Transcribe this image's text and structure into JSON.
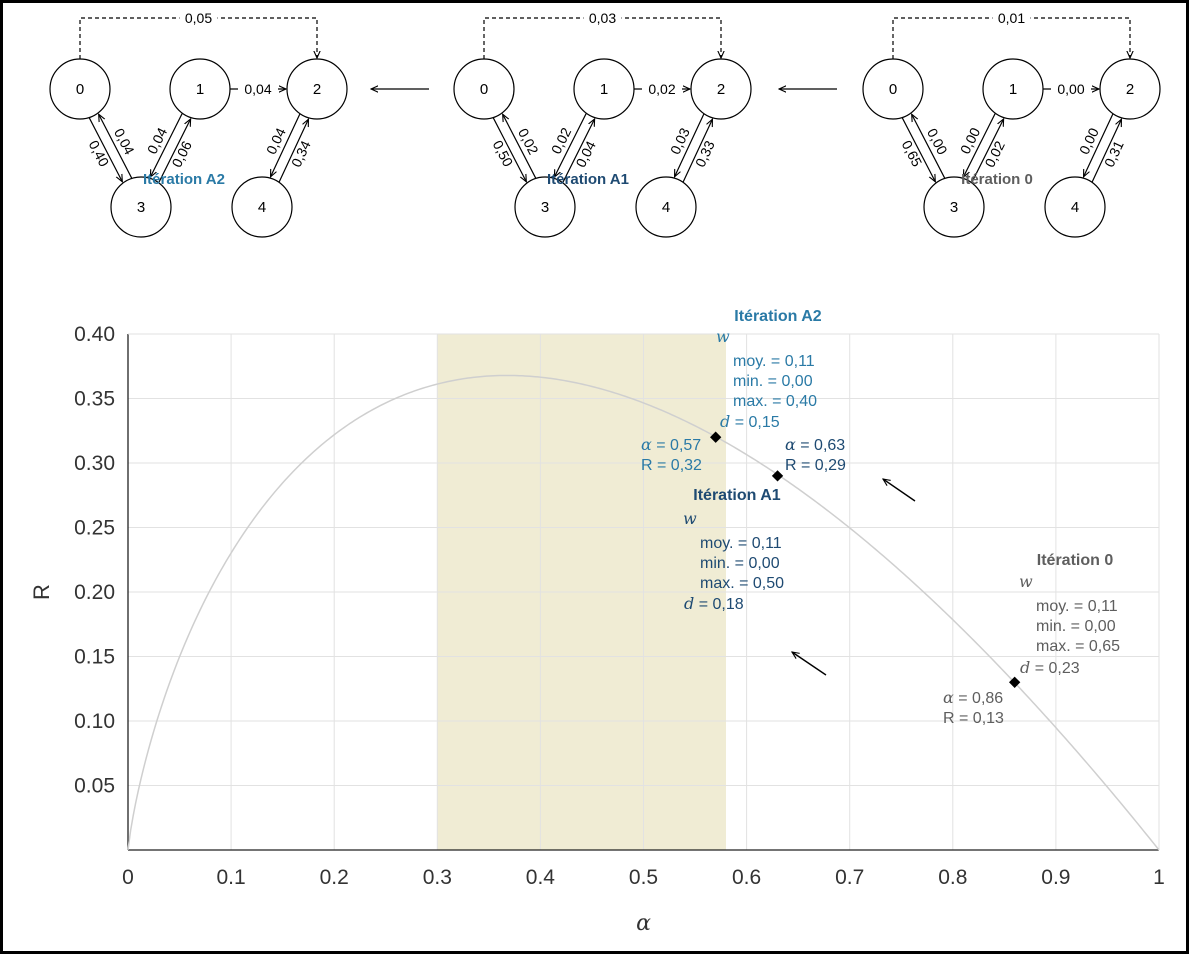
{
  "colors": {
    "iter_A2": "#2a7aa6",
    "iter_A1": "#1e4a72",
    "iter_0": "#5e5e5e",
    "highlight_band": "#f0ecd4",
    "curve": "#cfcfcf",
    "grid": "#e2e2e2"
  },
  "graphs": [
    {
      "title": "Itération A2",
      "color_key": "iter_A2",
      "nodes": [
        "0",
        "1",
        "2",
        "3",
        "4"
      ],
      "edges": [
        {
          "from": "0",
          "to": "2",
          "label": "0,05",
          "dashed": true
        },
        {
          "from": "1",
          "to": "2",
          "label": "0,04"
        },
        {
          "from": "0",
          "to": "3",
          "label": "0,40"
        },
        {
          "from": "3",
          "to": "0",
          "label": "0,04"
        },
        {
          "from": "1",
          "to": "3",
          "label": "0,04"
        },
        {
          "from": "3",
          "to": "1",
          "label": "0,06"
        },
        {
          "from": "2",
          "to": "4",
          "label": "0,04"
        },
        {
          "from": "4",
          "to": "2",
          "label": "0,34"
        }
      ]
    },
    {
      "title": "Itération A1",
      "color_key": "iter_A1",
      "nodes": [
        "0",
        "1",
        "2",
        "3",
        "4"
      ],
      "edges": [
        {
          "from": "0",
          "to": "2",
          "label": "0,03",
          "dashed": true
        },
        {
          "from": "1",
          "to": "2",
          "label": "0,02"
        },
        {
          "from": "0",
          "to": "3",
          "label": "0,50"
        },
        {
          "from": "3",
          "to": "0",
          "label": "0,02"
        },
        {
          "from": "1",
          "to": "3",
          "label": "0,02"
        },
        {
          "from": "3",
          "to": "1",
          "label": "0,04"
        },
        {
          "from": "2",
          "to": "4",
          "label": "0,03"
        },
        {
          "from": "4",
          "to": "2",
          "label": "0,33"
        }
      ]
    },
    {
      "title": "Itération 0",
      "color_key": "iter_0",
      "nodes": [
        "0",
        "1",
        "2",
        "3",
        "4"
      ],
      "edges": [
        {
          "from": "0",
          "to": "2",
          "label": "0,01",
          "dashed": true
        },
        {
          "from": "1",
          "to": "2",
          "label": "0,00"
        },
        {
          "from": "0",
          "to": "3",
          "label": "0,65"
        },
        {
          "from": "3",
          "to": "0",
          "label": "0,00"
        },
        {
          "from": "1",
          "to": "3",
          "label": "0,00"
        },
        {
          "from": "3",
          "to": "1",
          "label": "0,02"
        },
        {
          "from": "2",
          "to": "4",
          "label": "0,00"
        },
        {
          "from": "4",
          "to": "2",
          "label": "0,31"
        }
      ]
    }
  ],
  "chart_data": {
    "type": "line",
    "xlabel": "α",
    "ylabel": "R",
    "xlim": [
      0,
      1
    ],
    "ylim": [
      0,
      0.4
    ],
    "x_ticks": [
      "0",
      "0.1",
      "0.2",
      "0.3",
      "0.4",
      "0.5",
      "0.6",
      "0.7",
      "0.8",
      "0.9",
      "1"
    ],
    "y_ticks": [
      "0.05",
      "0.10",
      "0.15",
      "0.20",
      "0.25",
      "0.30",
      "0.35",
      "0.40"
    ],
    "grid": true,
    "highlight_band": [
      0.3,
      0.58
    ],
    "curve": "R = -α ln(α)",
    "points": [
      {
        "id": "iter_A2",
        "x": 0.57,
        "y": 0.32,
        "color_key": "iter_A2",
        "coord_lines": [
          "α = 0,57",
          "R = 0,32"
        ],
        "heading": "Itération A2",
        "w_symbol": "w",
        "stats": [
          "moy. = 0,11",
          "min. = 0,00",
          "max. = 0,40"
        ],
        "d_line": "d = 0,15"
      },
      {
        "id": "iter_A1",
        "x": 0.63,
        "y": 0.29,
        "color_key": "iter_A1",
        "coord_lines": [
          "α = 0,63",
          "R = 0,29"
        ],
        "heading": "Itération A1",
        "w_symbol": "w",
        "stats": [
          "moy. = 0,11",
          "min. = 0,00",
          "max. = 0,50"
        ],
        "d_line": "d = 0,18"
      },
      {
        "id": "iter_0",
        "x": 0.86,
        "y": 0.13,
        "color_key": "iter_0",
        "coord_lines": [
          "α = 0,86",
          "R = 0,13"
        ],
        "heading": "Itération 0",
        "w_symbol": "w",
        "stats": [
          "moy. = 0,11",
          "min. = 0,00",
          "max. = 0,65"
        ],
        "d_line": "d = 0,23"
      }
    ]
  }
}
